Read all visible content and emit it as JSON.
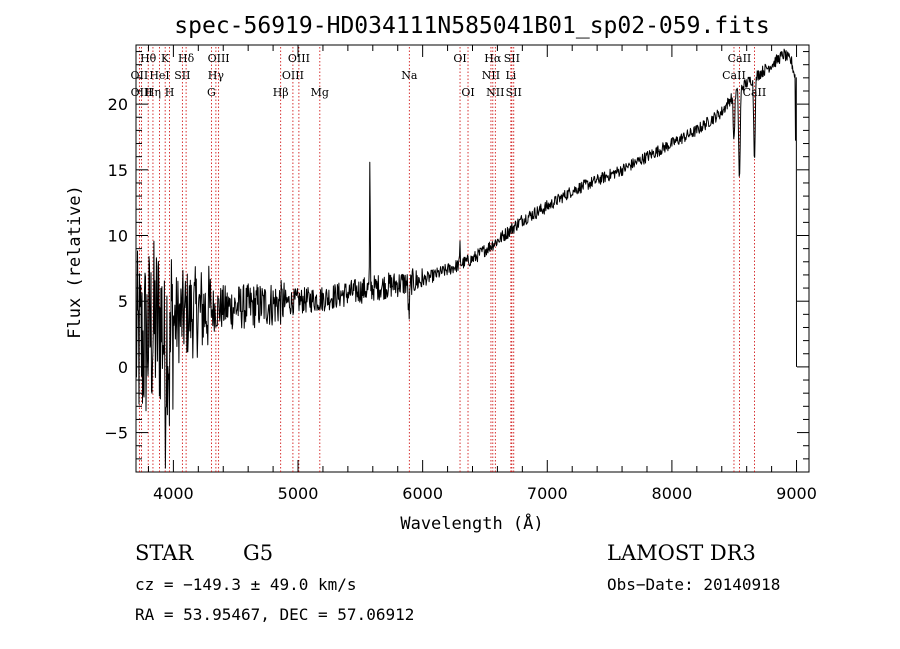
{
  "chart_data": {
    "type": "line",
    "title": "spec-56919-HD034111N585041B01_sp02-059.fits",
    "xlabel": "Wavelength (Å)",
    "ylabel": "Flux (relative)",
    "xlim": [
      3700,
      9100
    ],
    "ylim": [
      -8,
      24.5
    ],
    "xticks": [
      4000,
      5000,
      6000,
      7000,
      8000,
      9000
    ],
    "yticks": [
      -5,
      0,
      5,
      10,
      15,
      20
    ],
    "grid": false,
    "series": [
      {
        "name": "flux",
        "color": "#000000",
        "anchors": [
          [
            3700,
            2.0
          ],
          [
            3750,
            1.5
          ],
          [
            3800,
            2.5
          ],
          [
            3850,
            3.0
          ],
          [
            3900,
            3.3
          ],
          [
            4000,
            3.5
          ],
          [
            4100,
            4.0
          ],
          [
            4200,
            4.2
          ],
          [
            4300,
            4.4
          ],
          [
            4400,
            4.5
          ],
          [
            4600,
            4.6
          ],
          [
            4800,
            4.8
          ],
          [
            5000,
            5.0
          ],
          [
            5200,
            5.2
          ],
          [
            5400,
            5.6
          ],
          [
            5600,
            6.0
          ],
          [
            5800,
            6.3
          ],
          [
            6000,
            6.6
          ],
          [
            6200,
            7.4
          ],
          [
            6400,
            8.2
          ],
          [
            6600,
            9.6
          ],
          [
            6800,
            11.2
          ],
          [
            7000,
            12.2
          ],
          [
            7200,
            13.4
          ],
          [
            7400,
            14.2
          ],
          [
            7600,
            15.0
          ],
          [
            7800,
            16.0
          ],
          [
            8000,
            17.0
          ],
          [
            8200,
            18.0
          ],
          [
            8400,
            19.4
          ],
          [
            8500,
            20.8
          ],
          [
            8600,
            21.6
          ],
          [
            8700,
            22.3
          ],
          [
            8800,
            23.0
          ],
          [
            8900,
            23.8
          ],
          [
            8960,
            23.2
          ],
          [
            8990,
            22.0
          ],
          [
            9000,
            0.0
          ]
        ],
        "absorption_features": [
          {
            "wavelength": 3934,
            "depth": 5.0
          },
          {
            "wavelength": 3969,
            "depth": 4.0
          },
          {
            "wavelength": 5890,
            "depth": 2.5
          },
          {
            "wavelength": 8498,
            "depth": 3.5
          },
          {
            "wavelength": 8542,
            "depth": 7.0
          },
          {
            "wavelength": 8662,
            "depth": 6.0
          }
        ],
        "emission_features": [
          {
            "wavelength": 5577,
            "height": 9.5
          },
          {
            "wavelength": 6300,
            "height": 1.5
          }
        ]
      }
    ],
    "line_markers": [
      {
        "label": "Hθ",
        "wavelength": 3798,
        "row": 1
      },
      {
        "label": "OII",
        "wavelength": 3727,
        "row": 2
      },
      {
        "label": "OIII",
        "wavelength": 3745,
        "row": 3
      },
      {
        "label": "K",
        "wavelength": 3934,
        "row": 1
      },
      {
        "label": "HeI",
        "wavelength": 3889,
        "row": 2
      },
      {
        "label": "Hη",
        "wavelength": 3836,
        "row": 3
      },
      {
        "label": "Hδ",
        "wavelength": 4102,
        "row": 1
      },
      {
        "label": "SII",
        "wavelength": 4072,
        "row": 2
      },
      {
        "label": "H",
        "wavelength": 3969,
        "row": 3
      },
      {
        "label": "OIII",
        "wavelength": 4363,
        "row": 1
      },
      {
        "label": "Hγ",
        "wavelength": 4341,
        "row": 2
      },
      {
        "label": "G",
        "wavelength": 4305,
        "row": 3
      },
      {
        "label": "OIII",
        "wavelength": 5007,
        "row": 1
      },
      {
        "label": "OIII",
        "wavelength": 4959,
        "row": 2
      },
      {
        "label": "Hβ",
        "wavelength": 4861,
        "row": 3
      },
      {
        "label": "Mg",
        "wavelength": 5175,
        "row": 3
      },
      {
        "label": "Na",
        "wavelength": 5893,
        "row": 2
      },
      {
        "label": "OI",
        "wavelength": 6300,
        "row": 1
      },
      {
        "label": "OI",
        "wavelength": 6364,
        "row": 3
      },
      {
        "label": "Hα",
        "wavelength": 6563,
        "row": 1
      },
      {
        "label": "SII",
        "wavelength": 6716,
        "row": 1
      },
      {
        "label": "NII",
        "wavelength": 6548,
        "row": 2
      },
      {
        "label": "Li",
        "wavelength": 6708,
        "row": 2
      },
      {
        "label": "NII",
        "wavelength": 6583,
        "row": 3
      },
      {
        "label": "SII",
        "wavelength": 6731,
        "row": 3
      },
      {
        "label": "CaII",
        "wavelength": 8542,
        "row": 1
      },
      {
        "label": "CaII",
        "wavelength": 8498,
        "row": 2
      },
      {
        "label": "CaII",
        "wavelength": 8662,
        "row": 3
      }
    ]
  },
  "info": {
    "class_label": "STAR",
    "subclass": "G5",
    "survey": "LAMOST DR3",
    "cz": "cz = −149.3 ± 49.0 km/s",
    "obs_date": "Obs−Date: 20140918",
    "coords": "RA =  53.95467, DEC =  57.06912"
  },
  "colors": {
    "spectrum": "#000000",
    "marker_line": "#cc0000",
    "axis": "#000000",
    "background": "#ffffff"
  }
}
